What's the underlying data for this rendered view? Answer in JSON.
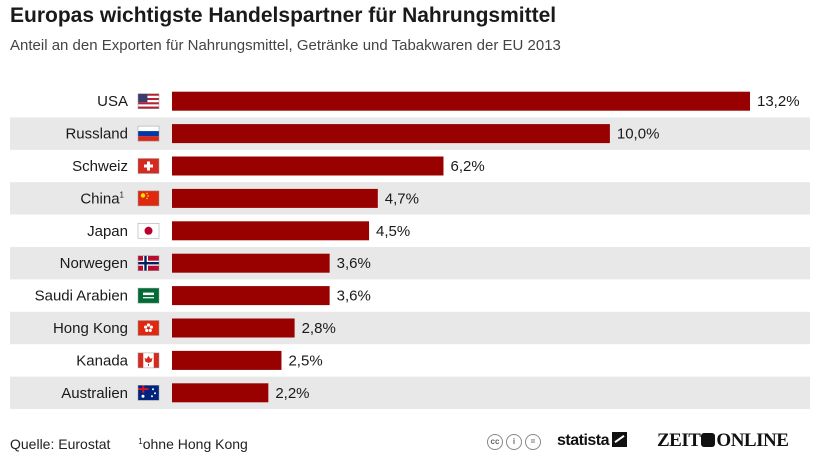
{
  "chart_data": {
    "type": "bar",
    "orientation": "horizontal",
    "title": "Europas wichtigste Handelspartner für Nahrungsmittel",
    "subtitle": "Anteil an den Exporten für Nahrungsmittel, Getränke und Tabakwaren der EU 2013",
    "categories": [
      "USA",
      "Russland",
      "Schweiz",
      "China",
      "Japan",
      "Norwegen",
      "Saudi Arabien",
      "Hong Kong",
      "Kanada",
      "Australien"
    ],
    "category_marks": [
      "",
      "",
      "",
      "1",
      "",
      "",
      "",
      "",
      "",
      ""
    ],
    "flags": [
      "flag-us-icon",
      "flag-ru-icon",
      "flag-ch-icon",
      "flag-cn-icon",
      "flag-jp-icon",
      "flag-no-icon",
      "flag-sa-icon",
      "flag-hk-icon",
      "flag-ca-icon",
      "flag-au-icon"
    ],
    "values": [
      13.2,
      10.0,
      6.2,
      4.7,
      4.5,
      3.6,
      3.6,
      2.8,
      2.5,
      2.2
    ],
    "value_labels": [
      "13,2%",
      "10,0%",
      "6,2%",
      "4,7%",
      "4,5%",
      "3,6%",
      "3,6%",
      "2,8%",
      "2,5%",
      "2,2%"
    ],
    "xlim": [
      0,
      13.2
    ],
    "grid": false,
    "bar_color": "#990000",
    "band_color": "#e8e8e8"
  },
  "footer": {
    "source": "Quelle: Eurostat",
    "footnote_mark": "1",
    "footnote": "ohne Hong Kong"
  },
  "branding": {
    "statista": "statista",
    "zeit_left": "ZEIT",
    "zeit_right": "ONLINE"
  }
}
